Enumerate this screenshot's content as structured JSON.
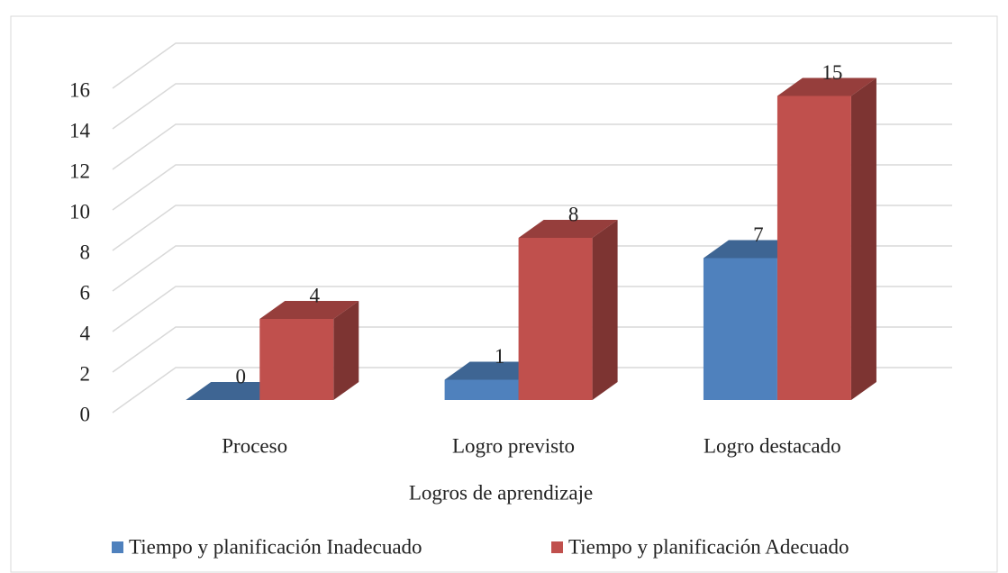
{
  "chart_data": {
    "type": "bar3d",
    "categories": [
      "Proceso",
      "Logro previsto",
      "Logro destacado"
    ],
    "series": [
      {
        "name": "Tiempo y planificación Inadecuado",
        "color": "#4f81bd",
        "values": [
          0,
          1,
          7
        ]
      },
      {
        "name": "Tiempo y planificación Adecuado",
        "color": "#c0504d",
        "values": [
          4,
          8,
          15
        ]
      }
    ],
    "x_label": "Logros de aprendizaje",
    "ylim": [
      0,
      16
    ],
    "yticks": [
      0,
      2,
      4,
      6,
      8,
      10,
      12,
      14,
      16
    ],
    "grid": true,
    "legend": "bottom"
  }
}
